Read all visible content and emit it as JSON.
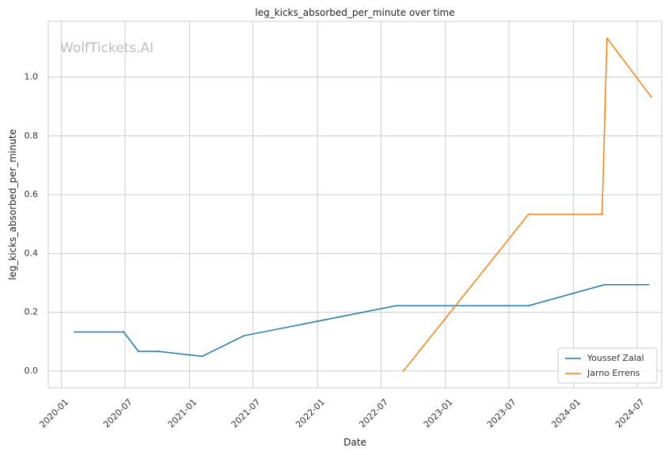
{
  "chart_data": {
    "type": "line",
    "title": "leg_kicks_absorbed_per_minute over time",
    "xlabel": "Date",
    "ylabel": "leg_kicks_absorbed_per_minute",
    "watermark": "WolfTickets.AI",
    "x_ticks": [
      "2020-01",
      "2020-07",
      "2021-01",
      "2021-07",
      "2022-01",
      "2022-07",
      "2023-01",
      "2023-07",
      "2024-01",
      "2024-07"
    ],
    "y_ticks": [
      "0.0",
      "0.2",
      "0.4",
      "0.6",
      "0.8",
      "1.0"
    ],
    "xlim": [
      "2019-11-25",
      "2024-09-09"
    ],
    "ylim": [
      -0.057,
      1.19
    ],
    "grid": true,
    "legend_position": "lower-right",
    "series": [
      {
        "name": "Youssef Zalal",
        "color": "#1f77b4",
        "points": [
          {
            "x": "2020-02-08",
            "y": 0.133
          },
          {
            "x": "2020-06-27",
            "y": 0.133
          },
          {
            "x": "2020-08-08",
            "y": 0.067
          },
          {
            "x": "2020-10-03",
            "y": 0.067
          },
          {
            "x": "2021-02-06",
            "y": 0.05
          },
          {
            "x": "2021-06-05",
            "y": 0.12
          },
          {
            "x": "2022-08-13",
            "y": 0.222
          },
          {
            "x": "2023-08-26",
            "y": 0.222
          },
          {
            "x": "2024-03-30",
            "y": 0.294
          },
          {
            "x": "2024-08-03",
            "y": 0.294
          }
        ]
      },
      {
        "name": "Jarno Errens",
        "color": "#ff7f0e",
        "points": [
          {
            "x": "2022-09-03",
            "y": 0.0
          },
          {
            "x": "2023-08-26",
            "y": 0.533
          },
          {
            "x": "2024-03-23",
            "y": 0.533
          },
          {
            "x": "2024-04-06",
            "y": 1.133
          },
          {
            "x": "2024-08-10",
            "y": 0.933
          }
        ]
      }
    ]
  }
}
